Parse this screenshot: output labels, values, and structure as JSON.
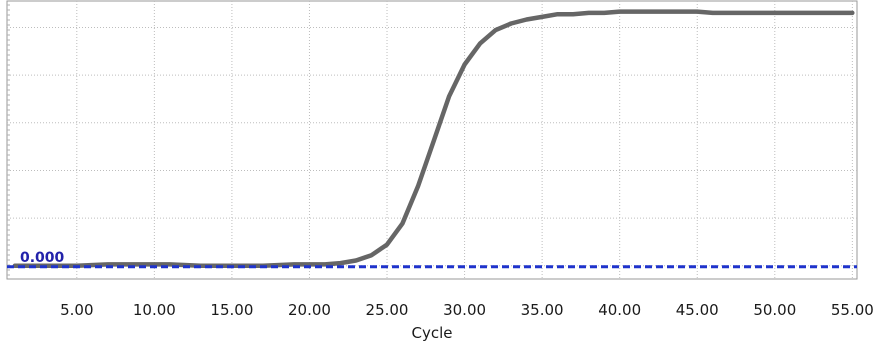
{
  "chart_data": {
    "type": "line",
    "xlabel": "Cycle",
    "ylabel": "",
    "title": "",
    "xlim": [
      0.5,
      55.3
    ],
    "ylim": [
      -0.05,
      1.0
    ],
    "x_ticks": [
      "5.00",
      "10.00",
      "15.00",
      "20.00",
      "25.00",
      "30.00",
      "35.00",
      "40.00",
      "45.00",
      "50.00",
      "55.00"
    ],
    "x_tick_values": [
      5,
      10,
      15,
      20,
      25,
      30,
      35,
      40,
      45,
      50,
      55
    ],
    "y_grid_values": [
      0.0,
      0.18,
      0.36,
      0.54,
      0.72,
      0.9
    ],
    "grid": true,
    "threshold": {
      "label": "0.000",
      "value": 0.0,
      "color": "#1f33cc"
    },
    "series": [
      {
        "color": "#666666",
        "x": [
          1,
          3,
          5,
          7,
          9,
          11,
          13,
          15,
          17,
          19,
          21,
          22,
          23,
          24,
          25,
          26,
          27,
          28,
          29,
          30,
          31,
          32,
          33,
          34,
          35,
          36,
          37,
          38,
          39,
          40,
          41,
          42,
          43,
          44,
          45,
          46,
          48,
          50,
          52,
          54,
          55
        ],
        "y": [
          0.0,
          0.0,
          0.0,
          0.005,
          0.005,
          0.005,
          0.0,
          0.0,
          0.0,
          0.005,
          0.005,
          0.01,
          0.02,
          0.04,
          0.08,
          0.16,
          0.3,
          0.47,
          0.64,
          0.76,
          0.84,
          0.89,
          0.915,
          0.93,
          0.94,
          0.95,
          0.95,
          0.955,
          0.955,
          0.96,
          0.96,
          0.96,
          0.96,
          0.96,
          0.96,
          0.955,
          0.955,
          0.955,
          0.955,
          0.955,
          0.955
        ]
      }
    ]
  }
}
